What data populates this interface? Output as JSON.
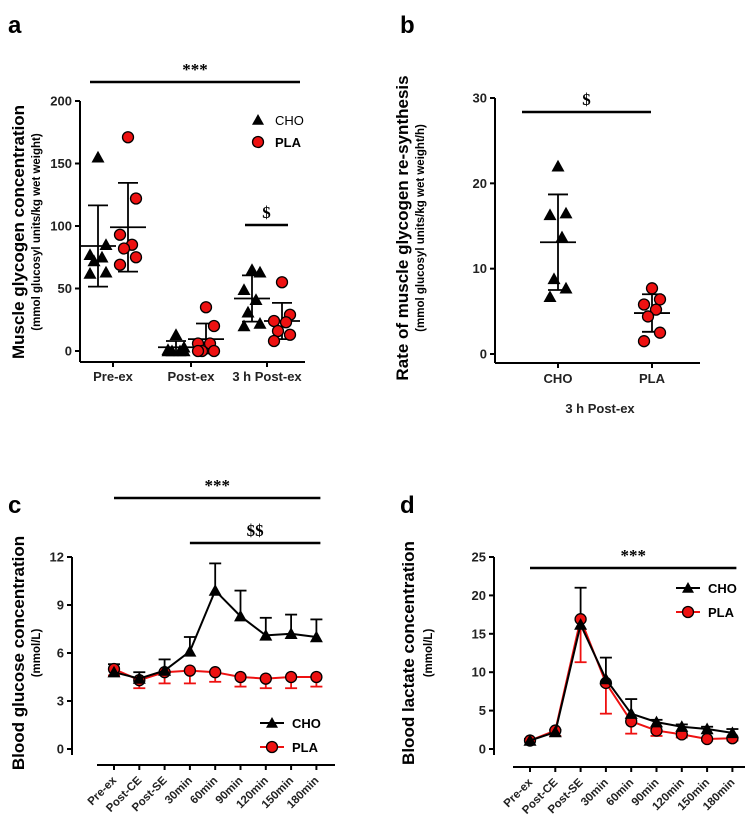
{
  "colors": {
    "cho": "#000000",
    "pla": "#ee1111"
  },
  "chart_data": [
    {
      "panel": "a",
      "type": "scatter",
      "ylabel": "Muscle glycogen concentration",
      "ysublabel": "(mmol glucosyl units/kg wet weight)",
      "ylim": [
        0,
        200
      ],
      "yticks": [
        0,
        50,
        100,
        150,
        200
      ],
      "categories": [
        "Pre-ex",
        "Post-ex",
        "3 h Post-ex"
      ],
      "legend": [
        "CHO",
        "PLA"
      ],
      "legend_position": "top-right",
      "annotations": [
        {
          "text": "***",
          "span": "all"
        },
        {
          "text": "$",
          "span": "3 h Post-ex"
        }
      ],
      "series": [
        {
          "name": "CHO",
          "points": [
            [
              155,
              85,
              77,
              75,
              72,
              63,
              62
            ],
            [
              13,
              3,
              1,
              0,
              0,
              0,
              0
            ],
            [
              65,
              63,
              49,
              41,
              31,
              22,
              20
            ]
          ],
          "mean": [
            84,
            3,
            42
          ],
          "sd": [
            32.5,
            5,
            18.5
          ]
        },
        {
          "name": "PLA",
          "points": [
            [
              171,
              122,
              93,
              85,
              82,
              75,
              69
            ],
            [
              35,
              20,
              6,
              6,
              0,
              0,
              0
            ],
            [
              55,
              29,
              24,
              23,
              16,
              13,
              8
            ]
          ],
          "mean": [
            99,
            9.5,
            24
          ],
          "sd": [
            35.5,
            12.5,
            14.5
          ]
        }
      ]
    },
    {
      "panel": "b",
      "type": "scatter",
      "ylabel": "Rate of muscle glycogen re-synthesis",
      "ysublabel": "(mmol glucosyl units/kg wet weight/h)",
      "xlabel": "3 h Post-ex",
      "ylim": [
        0,
        30
      ],
      "yticks": [
        0,
        10,
        20,
        30
      ],
      "categories": [
        "CHO",
        "PLA"
      ],
      "annotations": [
        {
          "text": "$"
        }
      ],
      "series": [
        {
          "name": "CHO",
          "points": [
            22,
            16.5,
            16.3,
            13.7,
            8.8,
            7.7,
            6.7
          ],
          "mean": 13.1,
          "sd": 5.6
        },
        {
          "name": "PLA",
          "points": [
            7.7,
            6.4,
            5.8,
            5.2,
            4.4,
            2.5,
            1.5
          ],
          "mean": 4.8,
          "sd": 2.2
        }
      ]
    },
    {
      "panel": "c",
      "type": "line",
      "ylabel": "Blood glucose concentration",
      "ysublabel": "(mmol/L)",
      "ylim": [
        0,
        12
      ],
      "yticks": [
        0,
        3,
        6,
        9,
        12
      ],
      "categories": [
        "Pre-ex",
        "Post-CE",
        "Post-SE",
        "30min",
        "60min",
        "90min",
        "120min",
        "150min",
        "180min"
      ],
      "legend": [
        "CHO",
        "PLA"
      ],
      "legend_position": "bottom-right",
      "annotations": [
        {
          "text": "***",
          "from": "Pre-ex",
          "to": "180min"
        },
        {
          "text": "$$",
          "from": "30min",
          "to": "180min"
        }
      ],
      "series": [
        {
          "name": "CHO",
          "values": [
            4.8,
            4.4,
            4.9,
            6.1,
            9.9,
            8.3,
            7.1,
            7.2,
            7.0
          ],
          "sd": [
            0.5,
            0.4,
            0.7,
            0.9,
            1.7,
            1.6,
            1.1,
            1.2,
            1.1
          ]
        },
        {
          "name": "PLA",
          "values": [
            5.0,
            4.3,
            4.8,
            4.9,
            4.8,
            4.5,
            4.4,
            4.5,
            4.5
          ],
          "sd": [
            0.4,
            0.5,
            0.7,
            0.8,
            0.6,
            0.6,
            0.6,
            0.7,
            0.6
          ]
        }
      ]
    },
    {
      "panel": "d",
      "type": "line",
      "ylabel": "Blood lactate concentration",
      "ysublabel": "(mmol/L)",
      "ylim": [
        0,
        25
      ],
      "yticks": [
        0,
        5,
        10,
        15,
        20,
        25
      ],
      "categories": [
        "Pre-ex",
        "Post-CE",
        "Post-SE",
        "30min",
        "60min",
        "90min",
        "120min",
        "150min",
        "180min"
      ],
      "legend": [
        "CHO",
        "PLA"
      ],
      "legend_position": "top-right",
      "annotations": [
        {
          "text": "***",
          "from": "Pre-ex",
          "to": "180min"
        }
      ],
      "series": [
        {
          "name": "CHO",
          "values": [
            1.1,
            2.2,
            16.2,
            9.1,
            4.6,
            3.5,
            2.9,
            2.6,
            2.1
          ],
          "sd": [
            0.2,
            0.3,
            4.8,
            2.8,
            1.9,
            0.3,
            0.3,
            0.3,
            0.5
          ]
        },
        {
          "name": "PLA",
          "values": [
            1.1,
            2.4,
            16.9,
            8.6,
            3.6,
            2.4,
            1.9,
            1.3,
            1.4
          ],
          "sd": [
            0.1,
            0.7,
            5.6,
            4.0,
            1.6,
            0.7,
            0.4,
            0.2,
            0.3
          ]
        }
      ]
    }
  ]
}
